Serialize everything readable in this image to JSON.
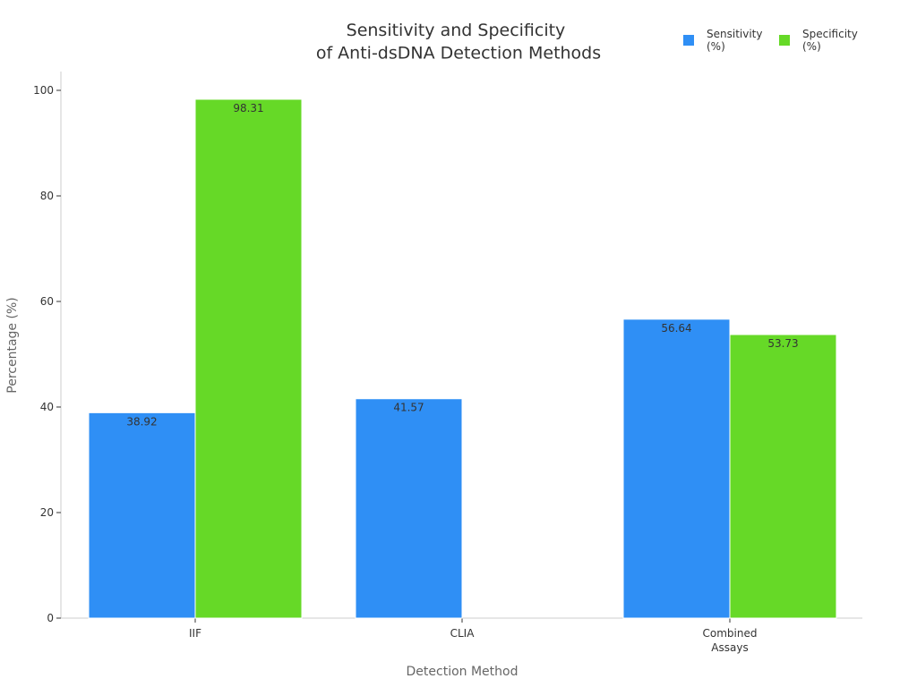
{
  "chart_data": {
    "type": "bar",
    "title": [
      "Sensitivity and Specificity",
      "of Anti-dsDNA Detection Methods"
    ],
    "xlabel": "Detection Method",
    "ylabel": "Percentage (%)",
    "ylim": [
      0,
      100
    ],
    "yticks": [
      0,
      20,
      40,
      60,
      80,
      100
    ],
    "categories": [
      [
        "IIF"
      ],
      [
        "CLIA"
      ],
      [
        "Combined",
        "Assays"
      ]
    ],
    "series": [
      {
        "name": [
          "Sensitivity",
          "(%)"
        ],
        "color": "#2f8ff5",
        "values": [
          38.92,
          41.57,
          56.64
        ]
      },
      {
        "name": [
          "Specificity",
          "(%)"
        ],
        "color": "#66d927",
        "values": [
          98.31,
          null,
          53.73
        ]
      }
    ],
    "grid": false,
    "legend_position": "top-right"
  }
}
